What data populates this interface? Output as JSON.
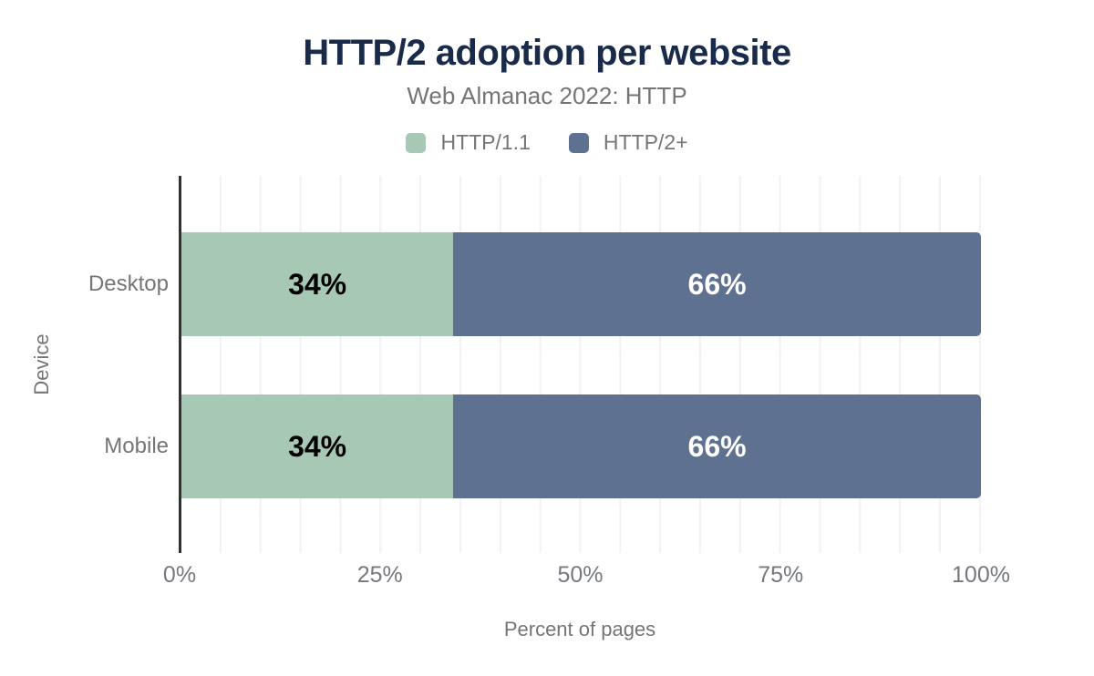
{
  "chart_data": {
    "type": "bar",
    "orientation": "horizontal",
    "stacked": true,
    "title": "HTTP/2 adoption per website",
    "subtitle": "Web Almanac 2022: HTTP",
    "xlabel": "Percent of pages",
    "ylabel": "Device",
    "categories": [
      "Desktop",
      "Mobile"
    ],
    "series": [
      {
        "name": "HTTP/1.1",
        "color": "#a7c8b5",
        "label_color": "#000000",
        "values": [
          34,
          34
        ]
      },
      {
        "name": "HTTP/2+",
        "color": "#5f7190",
        "label_color": "#ffffff",
        "values": [
          66,
          66
        ]
      }
    ],
    "value_suffix": "%",
    "xlim": [
      0,
      100
    ],
    "x_ticks": [
      "0%",
      "25%",
      "50%",
      "75%",
      "100%"
    ],
    "x_tick_positions": [
      0,
      25,
      50,
      75,
      100
    ],
    "grid": "vertical minor gridlines every 5%",
    "legend_position": "top-center"
  },
  "colors": {
    "title": "#1a2b49",
    "muted_text": "#757575",
    "axis_line": "#313131",
    "gridline": "#f2f2f2",
    "background": "#ffffff"
  }
}
